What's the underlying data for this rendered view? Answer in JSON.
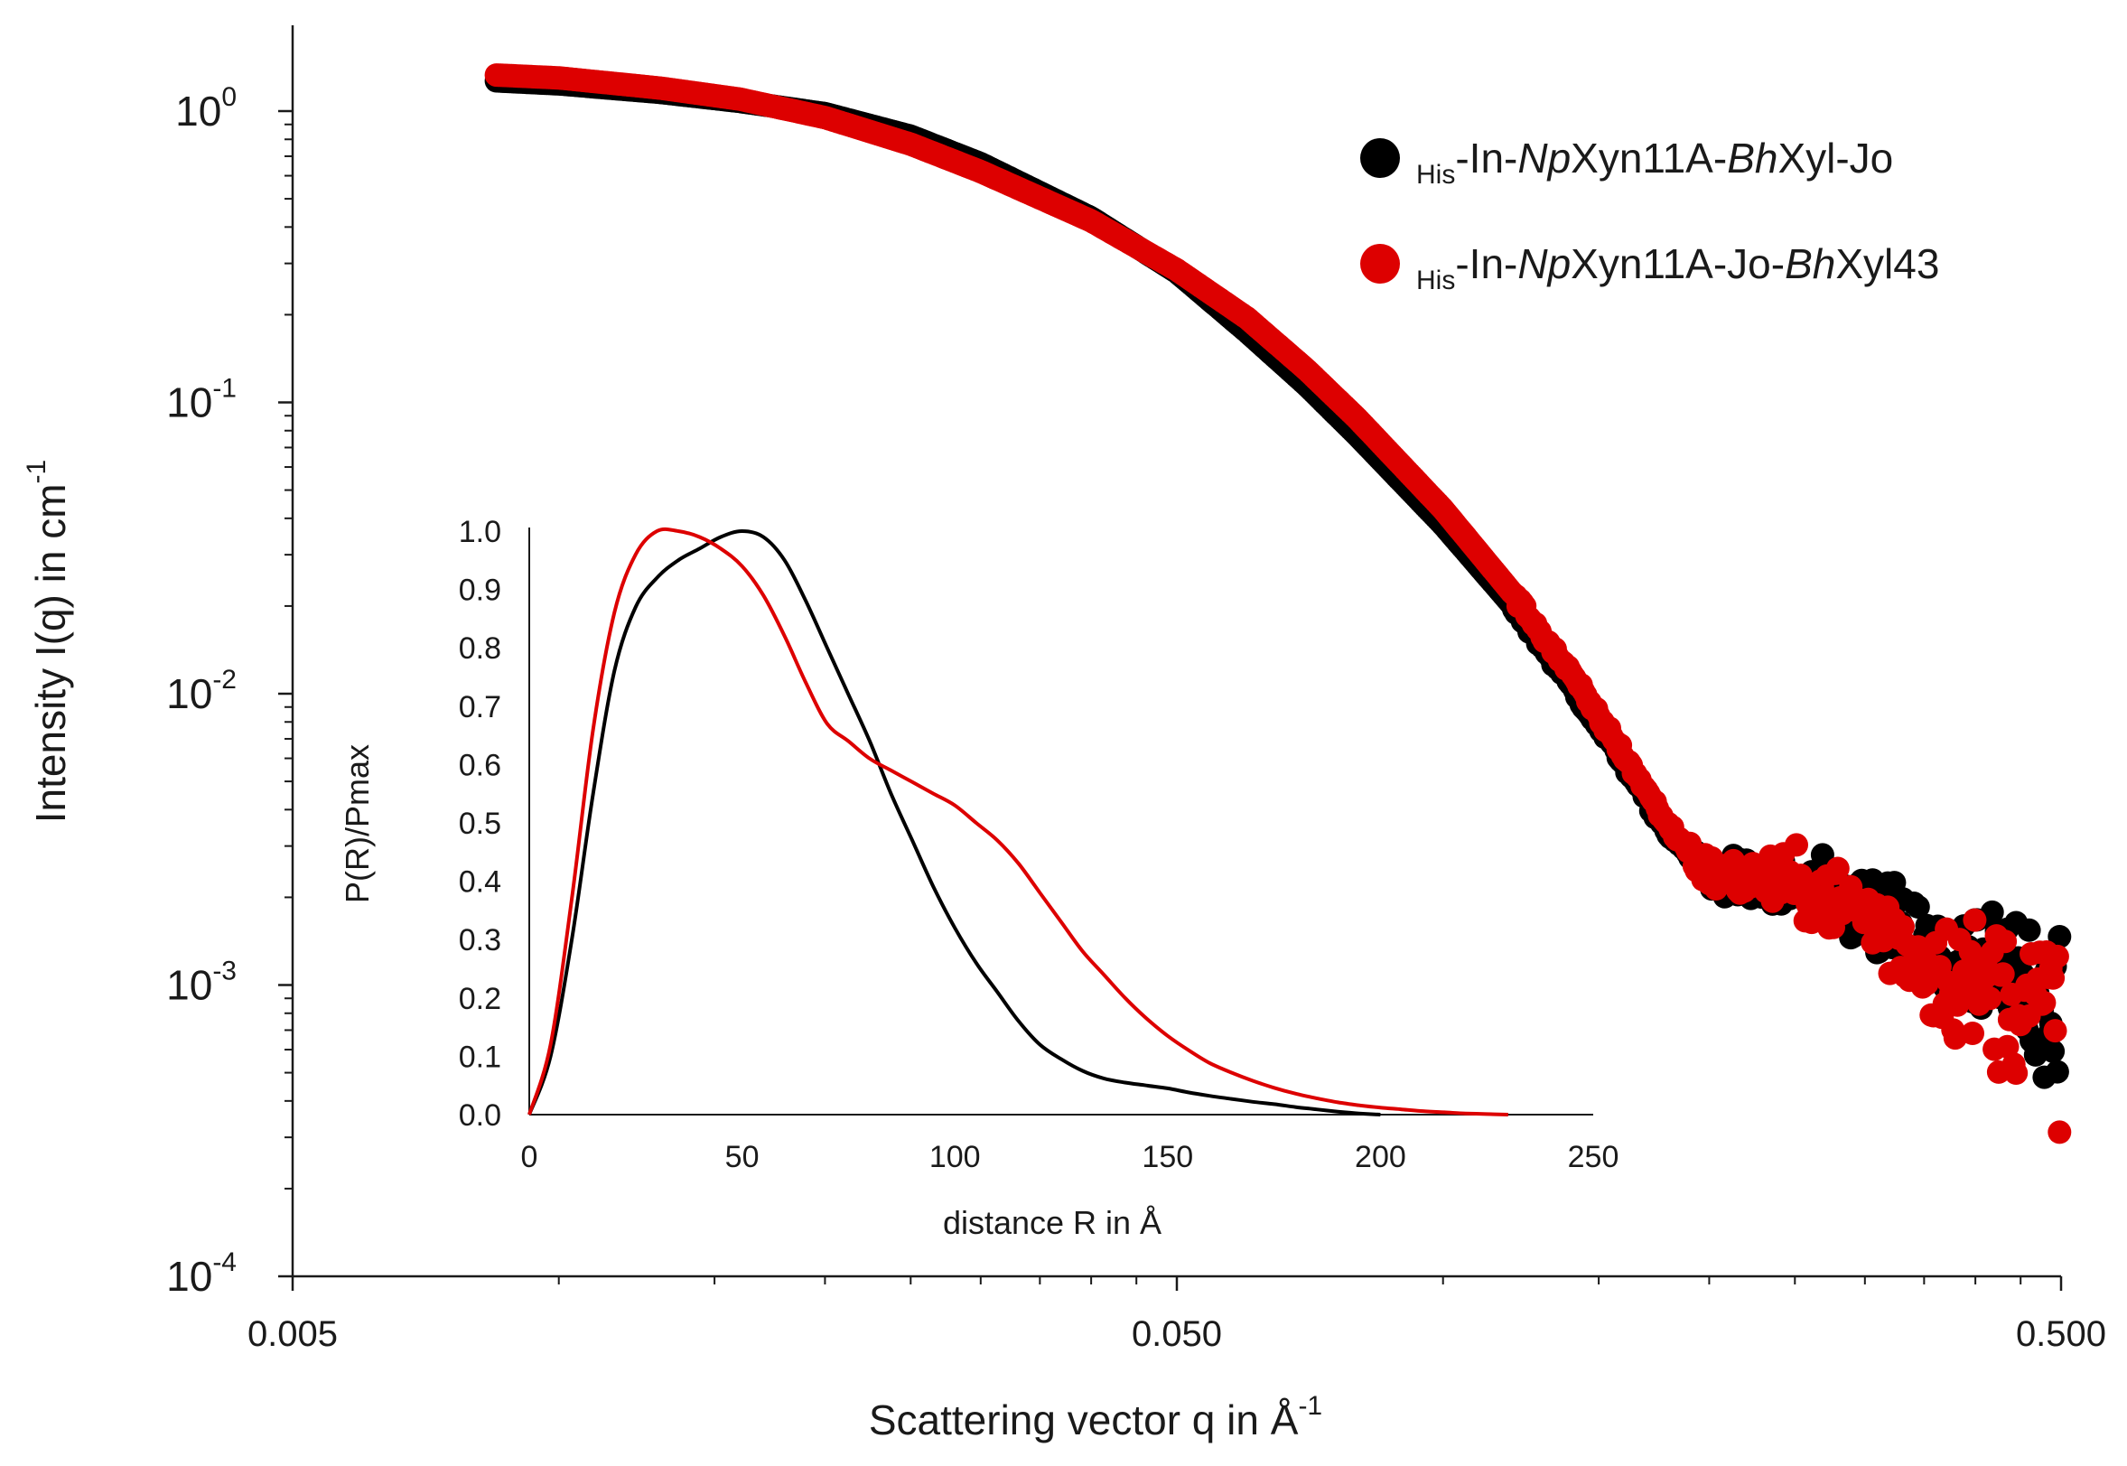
{
  "chart_data": [
    {
      "type": "scatter",
      "title": "",
      "xlabel": "Scattering vector q in Å",
      "xlabel_sup": "-1",
      "ylabel": "Intensity I(q) in cm",
      "ylabel_sup": "-1",
      "xscale": "log",
      "yscale": "log",
      "xlim": [
        0.005,
        0.5
      ],
      "ylim": [
        0.0001,
        2
      ],
      "x_ticks": [
        {
          "value": 0.005,
          "label": "0.005"
        },
        {
          "value": 0.05,
          "label": "0.050"
        },
        {
          "value": 0.5,
          "label": "0.500"
        }
      ],
      "y_ticks": [
        {
          "value": 1,
          "base": "10",
          "exp": "0"
        },
        {
          "value": 0.1,
          "base": "10",
          "exp": "-1"
        },
        {
          "value": 0.01,
          "base": "10",
          "exp": "-2"
        },
        {
          "value": 0.001,
          "base": "10",
          "exp": "-3"
        },
        {
          "value": 0.0001,
          "base": "10",
          "exp": "-4"
        }
      ],
      "legend": {
        "position": "top-right",
        "entries": [
          {
            "prefix": "His",
            "p1": "-In-",
            "i1": "Np",
            "p2": "Xyn11A-",
            "i2": "Bh",
            "p3": "Xyl-Jo",
            "color": "#000000"
          },
          {
            "prefix": "His",
            "p1": "-In-",
            "i1": "Np",
            "p2": "Xyn11A-Jo-",
            "i2": "Bh",
            "p3": "Xyl43",
            "color": "#dd0000"
          }
        ]
      },
      "series": [
        {
          "name": "His-In-NpXyn11A-BhXyl-Jo",
          "color": "#000000",
          "curve": [
            [
              0.0085,
              1.27
            ],
            [
              0.01,
              1.24
            ],
            [
              0.013,
              1.16
            ],
            [
              0.016,
              1.08
            ],
            [
              0.02,
              0.98
            ],
            [
              0.025,
              0.82
            ],
            [
              0.03,
              0.66
            ],
            [
              0.04,
              0.43
            ],
            [
              0.05,
              0.28
            ],
            [
              0.06,
              0.175
            ],
            [
              0.07,
              0.115
            ],
            [
              0.08,
              0.077
            ],
            [
              0.1,
              0.038
            ],
            [
              0.12,
              0.02
            ],
            [
              0.14,
              0.0105
            ],
            [
              0.16,
              0.0058
            ],
            [
              0.18,
              0.0033
            ],
            [
              0.2,
              0.0024
            ],
            [
              0.25,
              0.0021
            ],
            [
              0.3,
              0.0018
            ],
            [
              0.35,
              0.0013
            ],
            [
              0.4,
              0.0011
            ],
            [
              0.45,
              0.001
            ],
            [
              0.5,
              0.0009
            ]
          ]
        },
        {
          "name": "His-In-NpXyn11A-Jo-BhXyl43",
          "color": "#dd0000",
          "curve": [
            [
              0.0085,
              1.33
            ],
            [
              0.01,
              1.3
            ],
            [
              0.013,
              1.2
            ],
            [
              0.016,
              1.1
            ],
            [
              0.02,
              0.95
            ],
            [
              0.025,
              0.77
            ],
            [
              0.03,
              0.62
            ],
            [
              0.04,
              0.42
            ],
            [
              0.05,
              0.285
            ],
            [
              0.06,
              0.195
            ],
            [
              0.07,
              0.13
            ],
            [
              0.08,
              0.088
            ],
            [
              0.1,
              0.043
            ],
            [
              0.12,
              0.022
            ],
            [
              0.14,
              0.0115
            ],
            [
              0.16,
              0.0062
            ],
            [
              0.18,
              0.0035
            ],
            [
              0.2,
              0.0024
            ],
            [
              0.25,
              0.0022
            ],
            [
              0.3,
              0.0018
            ],
            [
              0.35,
              0.0012
            ],
            [
              0.4,
              0.001
            ],
            [
              0.45,
              0.0009
            ],
            [
              0.5,
              0.0008
            ]
          ]
        }
      ]
    },
    {
      "type": "line",
      "title": "",
      "xlabel": "distance R in Å",
      "ylabel": "P(R)/Pmax",
      "xlim": [
        0,
        250
      ],
      "ylim": [
        0,
        1
      ],
      "x_ticks": [
        "0",
        "50",
        "100",
        "150",
        "200",
        "250"
      ],
      "y_ticks": [
        "0.0",
        "0.1",
        "0.2",
        "0.3",
        "0.4",
        "0.5",
        "0.6",
        "0.7",
        "0.8",
        "0.9",
        "1.0"
      ],
      "series": [
        {
          "name": "His-In-NpXyn11A-BhXyl-Jo",
          "color": "#000000",
          "x": [
            0,
            5,
            10,
            15,
            20,
            25,
            30,
            35,
            40,
            45,
            50,
            55,
            60,
            65,
            70,
            75,
            80,
            85,
            90,
            95,
            100,
            105,
            110,
            115,
            120,
            125,
            130,
            135,
            140,
            145,
            150,
            155,
            160,
            165,
            170,
            175,
            180,
            185,
            190,
            195,
            200
          ],
          "y": [
            0,
            0.1,
            0.3,
            0.55,
            0.76,
            0.87,
            0.92,
            0.95,
            0.97,
            0.99,
            1.0,
            0.99,
            0.95,
            0.88,
            0.8,
            0.72,
            0.64,
            0.55,
            0.47,
            0.39,
            0.32,
            0.26,
            0.21,
            0.16,
            0.12,
            0.095,
            0.075,
            0.062,
            0.055,
            0.05,
            0.045,
            0.038,
            0.032,
            0.027,
            0.022,
            0.018,
            0.013,
            0.009,
            0.005,
            0.002,
            0
          ]
        },
        {
          "name": "His-In-NpXyn11A-Jo-BhXyl43",
          "color": "#dd0000",
          "x": [
            0,
            5,
            10,
            15,
            20,
            25,
            30,
            35,
            40,
            45,
            50,
            55,
            60,
            65,
            70,
            75,
            80,
            85,
            90,
            95,
            100,
            105,
            110,
            115,
            120,
            125,
            130,
            135,
            140,
            145,
            150,
            155,
            160,
            165,
            170,
            175,
            180,
            185,
            190,
            195,
            200,
            205,
            210,
            215,
            220,
            225,
            230
          ],
          "y": [
            0,
            0.12,
            0.37,
            0.66,
            0.86,
            0.96,
            1.0,
            1.0,
            0.99,
            0.97,
            0.94,
            0.89,
            0.82,
            0.74,
            0.67,
            0.64,
            0.61,
            0.59,
            0.57,
            0.55,
            0.53,
            0.5,
            0.47,
            0.43,
            0.38,
            0.33,
            0.28,
            0.24,
            0.2,
            0.165,
            0.135,
            0.11,
            0.088,
            0.072,
            0.058,
            0.046,
            0.036,
            0.028,
            0.021,
            0.016,
            0.012,
            0.009,
            0.006,
            0.004,
            0.002,
            0.001,
            0
          ]
        }
      ]
    }
  ]
}
